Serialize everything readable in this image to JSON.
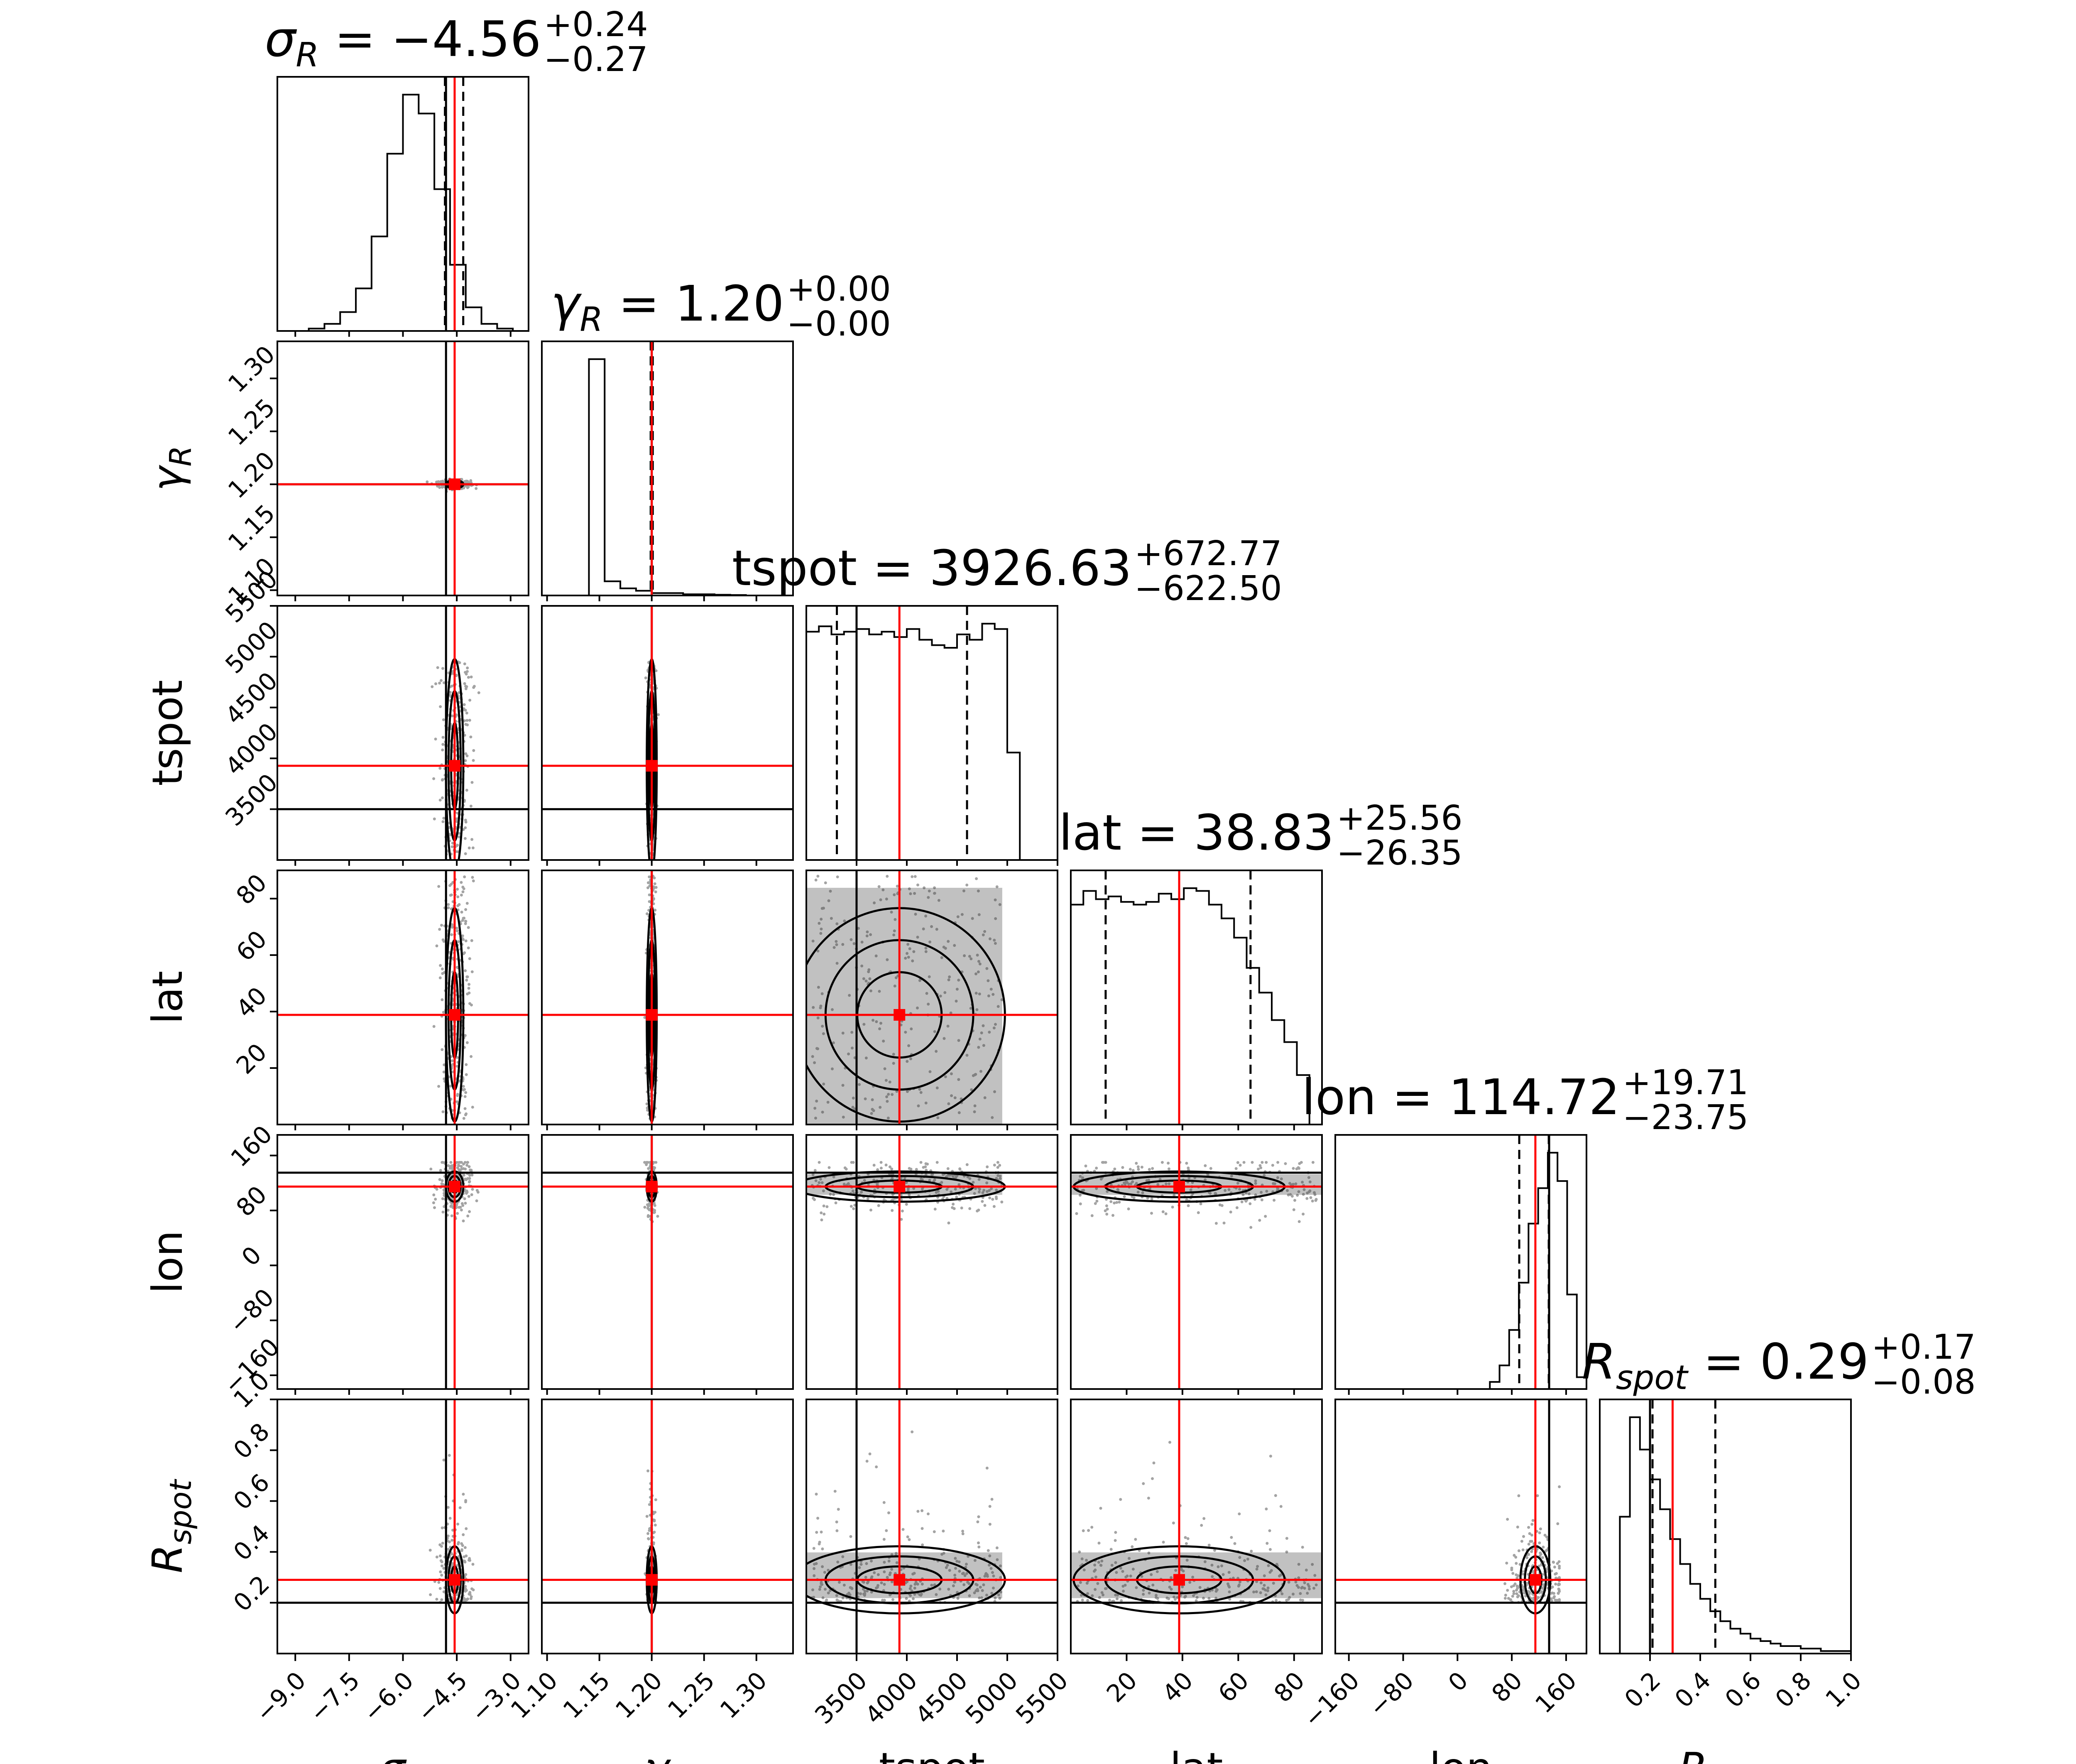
{
  "chart_data": {
    "type": "corner",
    "description_title": "Corner plot of posterior samples",
    "parameters": [
      {
        "key": "sigma_R",
        "sym": "σ",
        "sub": "R",
        "title_prefix": " = ",
        "median": "−4.56",
        "upper": "+0.24",
        "lower": "−0.27",
        "range": [
          -9.5,
          -2.5
        ],
        "ticks": [
          -9.0,
          -7.5,
          -6.0,
          -4.5,
          -3.0
        ],
        "tick_labels": [
          "−9.0",
          "−7.5",
          "−6.0",
          "−4.5",
          "−3.0"
        ],
        "median_value": -4.56,
        "q16": -4.83,
        "q84": -4.32,
        "truth": -4.8,
        "spread": 0.22
      },
      {
        "key": "gamma_R",
        "sym": "γ",
        "sub": "R",
        "title_prefix": " = ",
        "median": "1.20",
        "upper": "+0.00",
        "lower": "−0.00",
        "range": [
          1.095,
          1.335
        ],
        "ticks": [
          1.1,
          1.15,
          1.2,
          1.25,
          1.3
        ],
        "tick_labels": [
          "1.10",
          "1.15",
          "1.20",
          "1.25",
          "1.30"
        ],
        "median_value": 1.2,
        "q16": 1.199,
        "q84": 1.201,
        "truth": 1.2,
        "spread": 0.002
      },
      {
        "key": "tspot",
        "sym": "tspot",
        "sub": "",
        "title_prefix": " = ",
        "median": "3926.63",
        "upper": "+672.77",
        "lower": "−622.50",
        "range": [
          3000,
          5500
        ],
        "ticks": [
          3500,
          4000,
          4500,
          5000,
          5500
        ],
        "tick_labels": [
          "3500",
          "4000",
          "4500",
          "5000",
          "5500"
        ],
        "median_value": 3926.63,
        "q16": 3304.13,
        "q84": 4599.4,
        "truth": 3500,
        "spread": 600
      },
      {
        "key": "lat",
        "sym": "lat",
        "sub": "",
        "title_prefix": " = ",
        "median": "38.83",
        "upper": "+25.56",
        "lower": "−26.35",
        "range": [
          0,
          90
        ],
        "ticks": [
          20,
          40,
          60,
          80
        ],
        "tick_labels": [
          "20",
          "40",
          "60",
          "80"
        ],
        "median_value": 38.83,
        "q16": 12.48,
        "q84": 64.39,
        "truth": null,
        "spread": 25
      },
      {
        "key": "lon",
        "sym": "lon",
        "sub": "",
        "title_prefix": " = ",
        "median": "114.72",
        "upper": "+19.71",
        "lower": "−23.75",
        "range": [
          -180,
          190
        ],
        "ticks": [
          -160,
          -80,
          0,
          80,
          160
        ],
        "tick_labels": [
          "−160",
          "−80",
          "0",
          "80",
          "160"
        ],
        "median_value": 114.72,
        "q16": 90.97,
        "q84": 134.43,
        "truth": 135,
        "spread": 20
      },
      {
        "key": "R_spot",
        "sym": "R",
        "sub": "spot",
        "title_prefix": " = ",
        "median": "0.29",
        "upper": "+0.17",
        "lower": "−0.08",
        "range": [
          0.0,
          1.0
        ],
        "ticks": [
          0.2,
          0.4,
          0.6,
          0.8,
          1.0
        ],
        "tick_labels": [
          "0.2",
          "0.4",
          "0.6",
          "0.8",
          "1.0"
        ],
        "median_value": 0.29,
        "q16": 0.21,
        "q84": 0.46,
        "truth": 0.2,
        "spread": 0.12
      }
    ],
    "histograms": {
      "sigma_R": [
        0,
        0,
        1,
        3,
        8,
        18,
        40,
        75,
        100,
        92,
        60,
        28,
        10,
        3,
        1,
        0
      ],
      "gamma_R": [
        0,
        0,
        0,
        100,
        6,
        3,
        2,
        1,
        1,
        0.5,
        0.5,
        0.3,
        0.2,
        0,
        0,
        0
      ],
      "tspot": [
        85,
        87,
        84,
        85,
        86,
        84,
        85,
        83,
        86,
        82,
        80,
        79,
        84,
        82,
        88,
        86,
        40,
        0,
        0,
        0
      ],
      "lat": [
        80,
        85,
        82,
        83,
        81,
        80,
        81,
        84,
        82,
        86,
        85,
        80,
        75,
        68,
        57,
        48,
        38,
        30,
        18,
        0
      ],
      "lon": [
        0,
        0,
        0,
        0,
        0,
        0,
        0,
        0,
        0,
        0,
        0,
        0,
        0,
        0,
        0,
        0,
        3,
        10,
        25,
        45,
        70,
        85,
        100,
        88,
        40,
        5
      ],
      "R_spot": [
        0,
        0,
        55,
        95,
        82,
        70,
        58,
        46,
        36,
        28,
        22,
        17,
        13,
        10,
        8,
        6,
        5,
        4,
        3,
        3,
        2,
        2,
        1,
        1,
        1
      ]
    },
    "true_lines_color": "#000000",
    "median_lines_color": "#ff0000",
    "quantile_line_style": "dashed",
    "density_fill_color": "#4d4d4d"
  }
}
